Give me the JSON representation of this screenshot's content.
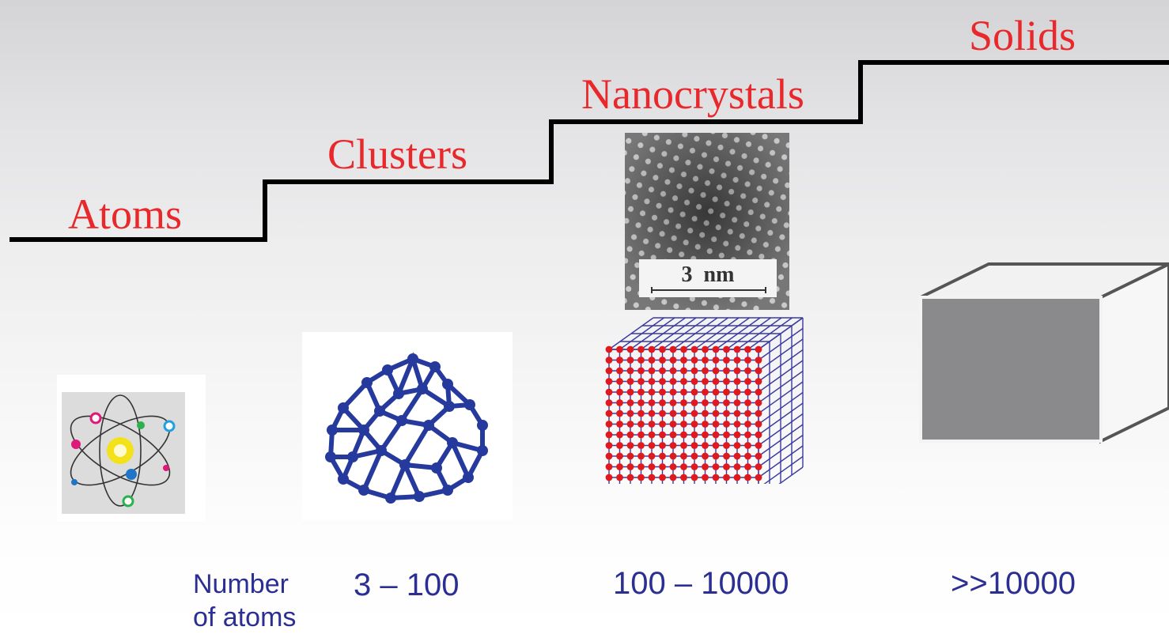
{
  "stages": {
    "atoms": {
      "label": "Atoms"
    },
    "clusters": {
      "label": "Clusters",
      "count": "3 – 100"
    },
    "nanocrystals": {
      "label": "Nanocrystals",
      "count": "100 – 10000",
      "scale_bar": "3  nm"
    },
    "solids": {
      "label": "Solids",
      "count": ">>10000"
    }
  },
  "count_caption": {
    "line1": "Number",
    "line2": "of atoms"
  },
  "colors": {
    "label_red": "#e8282a",
    "count_blue": "#2b2f93",
    "cluster_blue": "#263a9e",
    "lattice_red": "#e0191e",
    "lattice_grid_blue": "#3a3aa0",
    "solid_face_gray": "#8a8a8c",
    "staircase_black": "#000000"
  },
  "icons": [
    "atom-model-icon",
    "cluster-cage-icon",
    "tem-lattice-image",
    "crystal-lattice-icon",
    "solid-cube-icon"
  ]
}
